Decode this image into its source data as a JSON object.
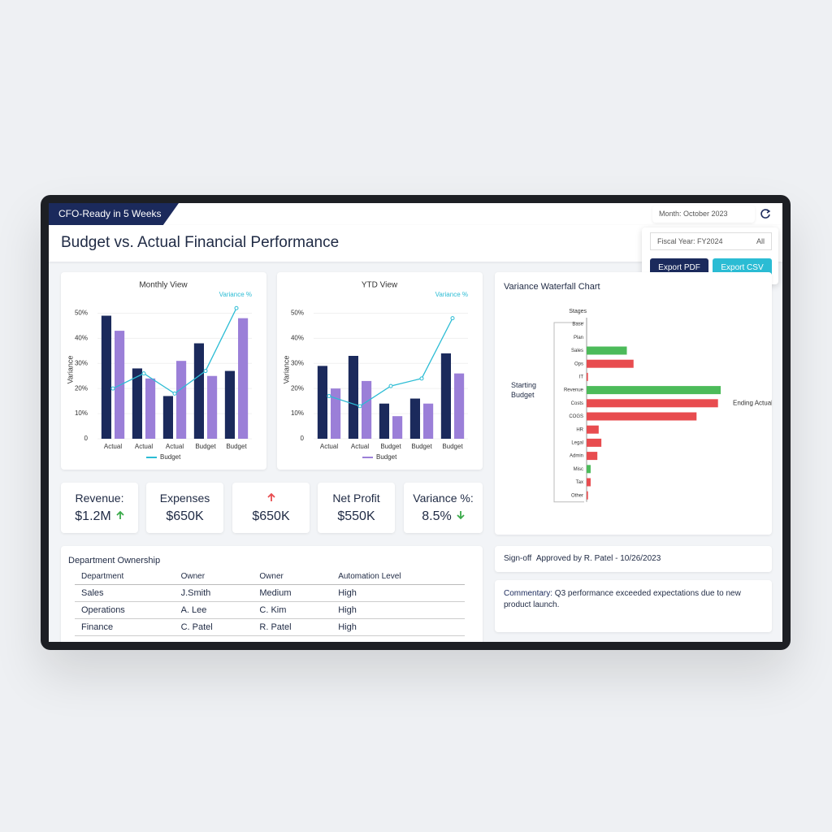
{
  "header": {
    "badge": "CFO-Ready in 5 Weeks",
    "title": "Budget vs. Actual Financial Performance",
    "month_filter": "Month: October 2023",
    "fiscal_filter": "Fiscal Year: FY2024",
    "fiscal_scope": "All",
    "export_pdf": "Export PDF",
    "export_csv": "Export CSV"
  },
  "charts": [
    {
      "type": "bar",
      "title": "Monthly View",
      "y_label": "Variance",
      "categories": [
        "Actual",
        "Actual",
        "Actual",
        "Budget",
        "Budget"
      ],
      "ylim": [
        0,
        55
      ],
      "yticks": [
        {
          "value": 0,
          "label": "0"
        },
        {
          "value": 10,
          "label": "10%"
        },
        {
          "value": 20,
          "label": "20%"
        },
        {
          "value": 30,
          "label": "30%"
        },
        {
          "value": 40,
          "label": "40%"
        },
        {
          "value": 50,
          "label": "50%"
        }
      ],
      "series": [
        {
          "name": "Actual",
          "color": "#1b2a5c",
          "values": [
            49,
            28,
            17,
            38,
            27
          ]
        },
        {
          "name": "Budget",
          "color": "#9b7fd8",
          "values": [
            43,
            24,
            31,
            25,
            48
          ]
        },
        {
          "name": "Variance %",
          "color": "#2bbcd4",
          "line": true,
          "values": [
            20,
            26,
            18,
            27,
            52
          ]
        }
      ],
      "legend_series": 1
    },
    {
      "type": "bar",
      "title": "YTD View",
      "y_label": "Variance",
      "categories": [
        "Actual",
        "Actual",
        "Budget",
        "Budget",
        "Budget"
      ],
      "ylim": [
        0,
        55
      ],
      "yticks": [
        {
          "value": 0,
          "label": "0"
        },
        {
          "value": 10,
          "label": "10%"
        },
        {
          "value": 20,
          "label": "20%"
        },
        {
          "value": 30,
          "label": "30%"
        },
        {
          "value": 40,
          "label": "40%"
        },
        {
          "value": 50,
          "label": "50%"
        }
      ],
      "series": [
        {
          "name": "Actual",
          "color": "#1b2a5c",
          "values": [
            29,
            33,
            14,
            16,
            34
          ]
        },
        {
          "name": "Budget",
          "color": "#9b7fd8",
          "values": [
            20,
            23,
            9,
            14,
            26
          ]
        },
        {
          "name": "Variance %",
          "color": "#2bbcd4",
          "line": true,
          "values": [
            17,
            13,
            21,
            24,
            48
          ]
        }
      ],
      "legend_series": 1
    },
    {
      "type": "waterfall",
      "title": "Variance Waterfall Chart",
      "axis_title": "Stages",
      "categories": [
        "Base",
        "Plan",
        "Sales",
        "Ops",
        "IT",
        "Revenue",
        "Costs",
        "COGS",
        "HR",
        "Legal",
        "Admin",
        "Misc",
        "Tax",
        "Other"
      ],
      "values": [
        0,
        0,
        30,
        -35,
        -1,
        100,
        -98,
        -82,
        -9,
        -11,
        -8,
        3,
        -3,
        -1
      ],
      "xlim": [
        0,
        100
      ],
      "positive_color": "#4cbb5a",
      "negative_color": "#e84c4f",
      "start_label": "Starting Budget",
      "end_label": "Ending Actual"
    }
  ],
  "kpis": [
    {
      "label": "Revenue:",
      "value": "$1.2M",
      "trend": "up",
      "trend_color": "#3aaa4a"
    },
    {
      "label": "Expenses",
      "value": "$650K"
    },
    {
      "value": "$650K",
      "trend": "up",
      "trend_color": "#e84c4f",
      "trend_above": true
    },
    {
      "label": "Net Profit",
      "value": "$550K"
    },
    {
      "label": "Variance %:",
      "value": "8.5%",
      "trend": "down",
      "trend_color": "#3aaa4a"
    }
  ],
  "table": {
    "title": "Department Ownership",
    "columns": [
      "Department",
      "Owner",
      "Owner",
      "Automation Level"
    ],
    "rows": [
      [
        "Sales",
        "J.Smith",
        "Medium",
        "High"
      ],
      [
        "Operations",
        "A. Lee",
        "C. Kim",
        "High"
      ],
      [
        "Finance",
        "C. Patel",
        "R. Patel",
        "High"
      ]
    ]
  },
  "signoff": {
    "label": "Sign-off",
    "text": "Approved by R. Patel - 10/26/2023"
  },
  "commentary": {
    "label": "Commentary:",
    "text": "Q3 performance exceeded expectations due to new product launch."
  }
}
